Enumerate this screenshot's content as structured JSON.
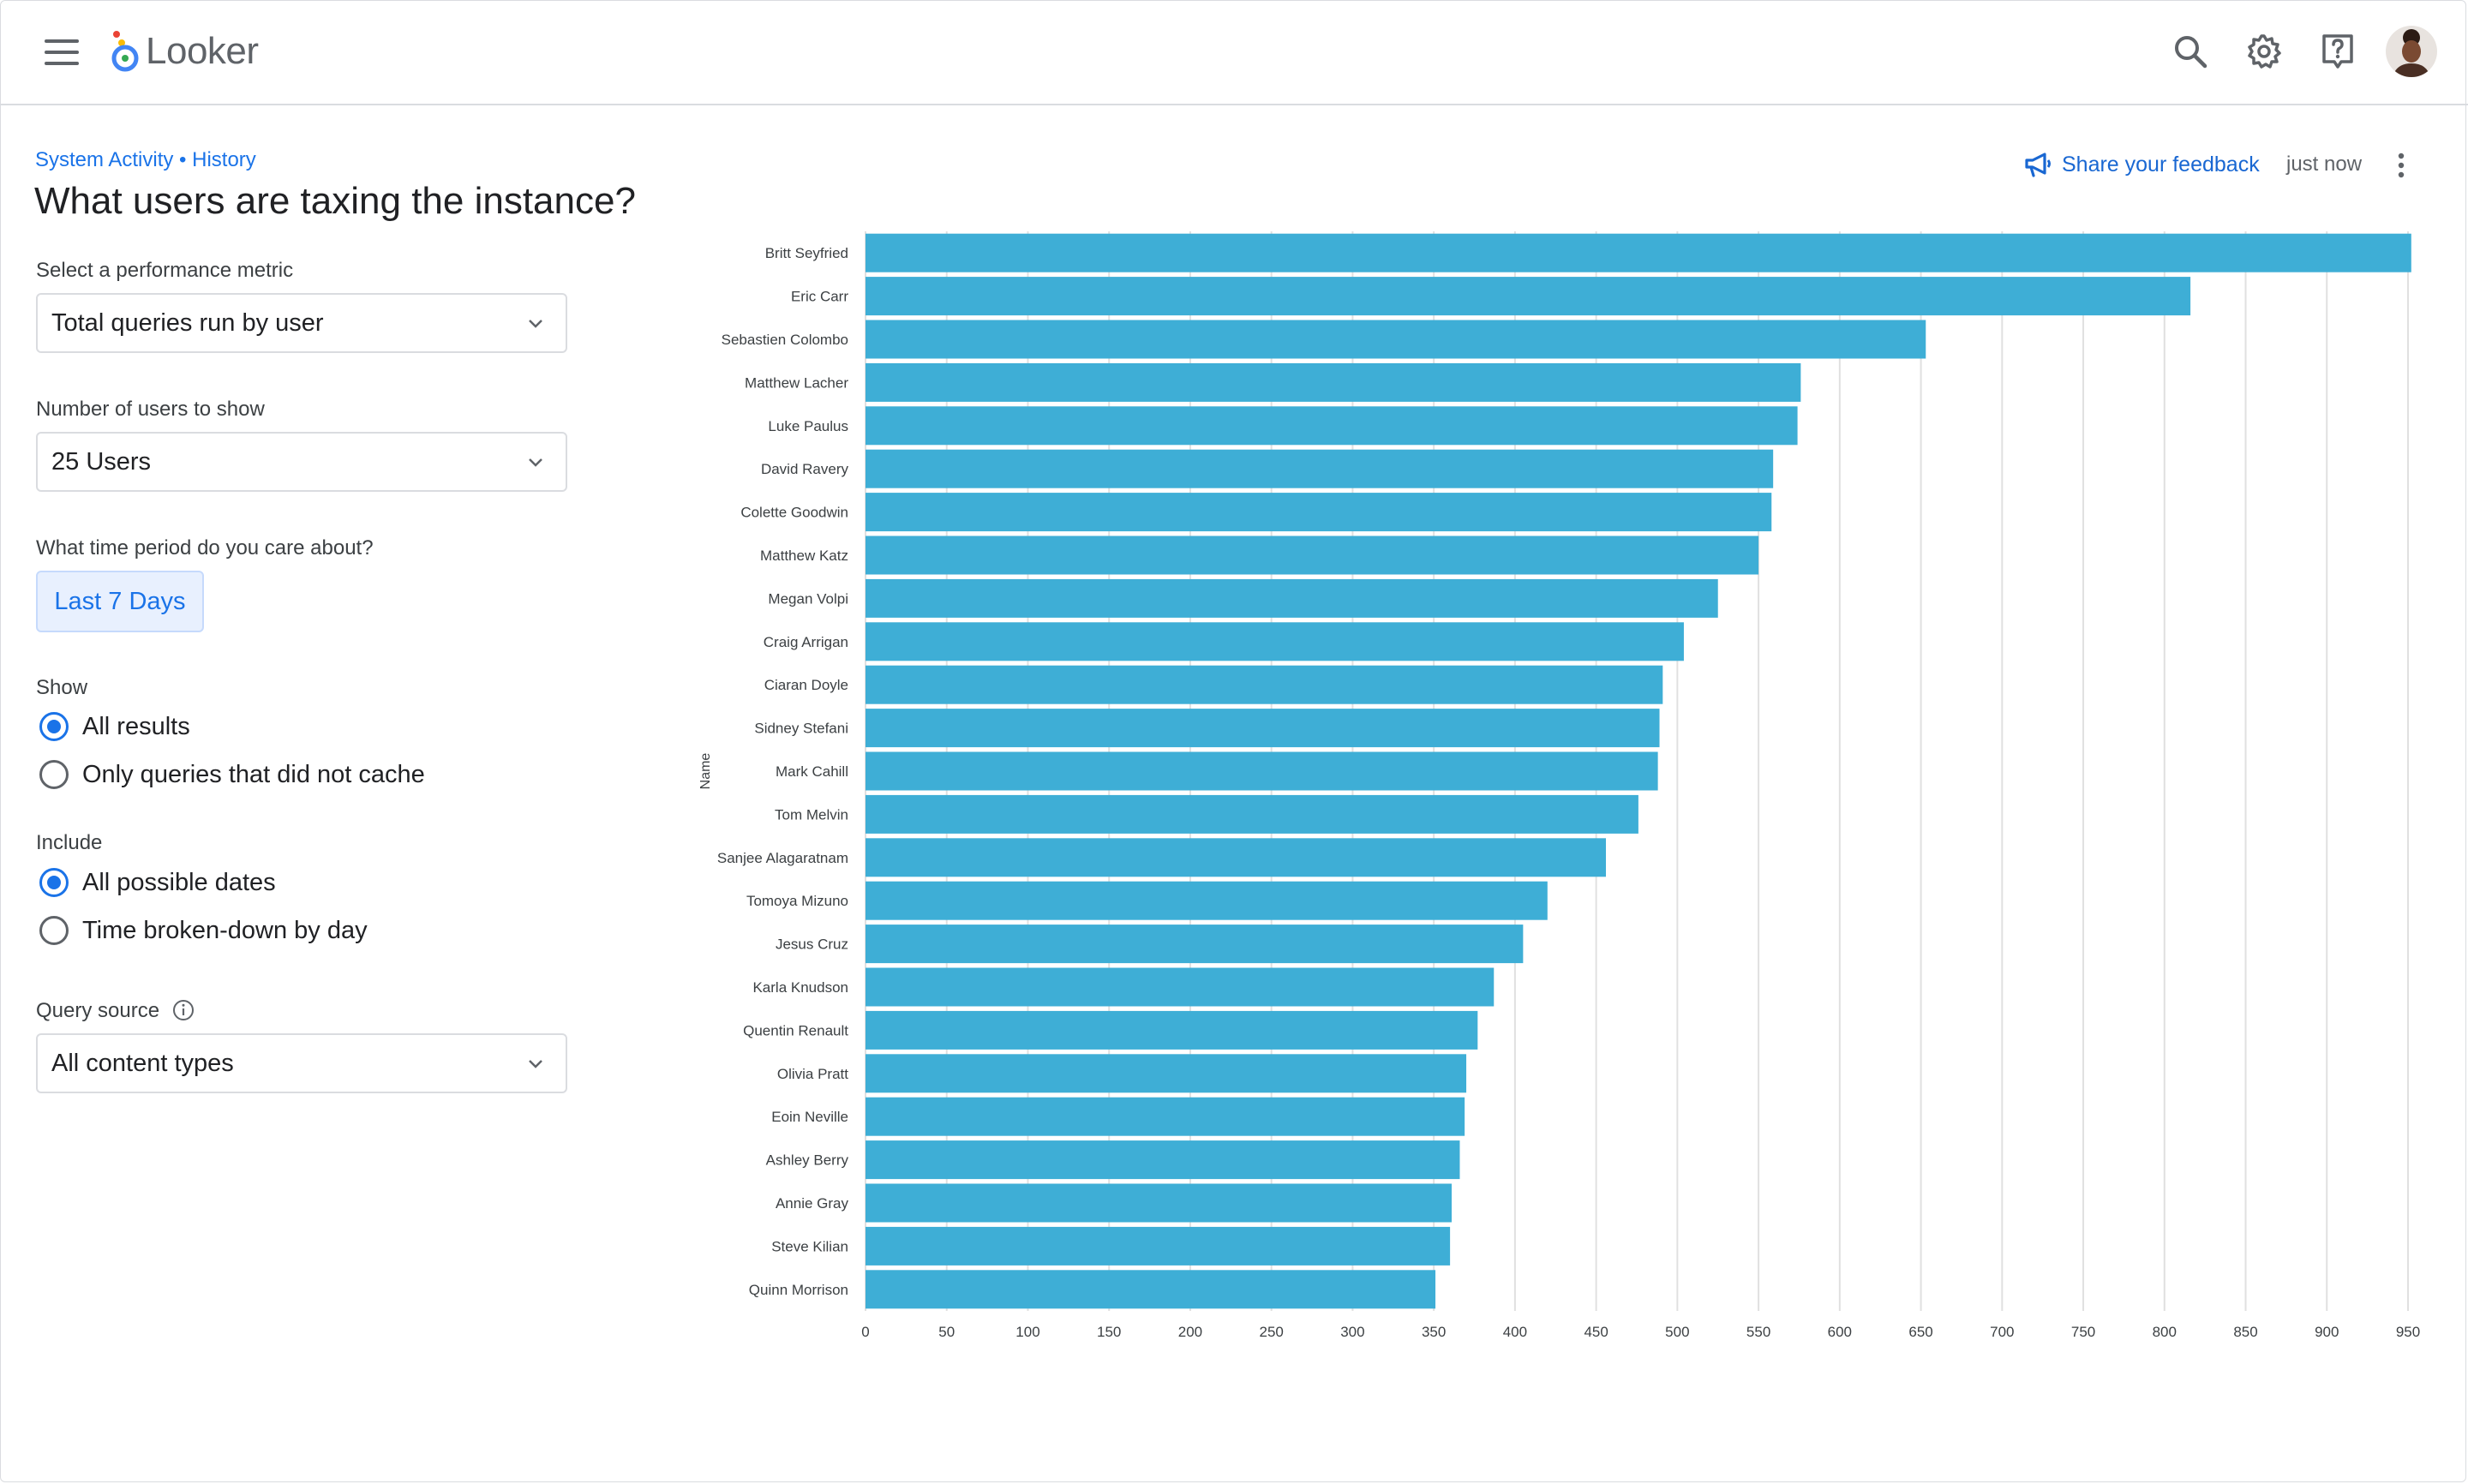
{
  "app": {
    "brand": "Looker",
    "header_icons": [
      "menu-icon",
      "search-icon",
      "gear-icon",
      "help-icon",
      "avatar"
    ]
  },
  "breadcrumb": "System Activity • History",
  "page_title": "What users are taxing the instance?",
  "filters": {
    "metric_label": "Select a performance metric",
    "metric_value": "Total queries run by user",
    "users_label": "Number of users to show",
    "users_value": "25 Users",
    "period_label": "What time period do you care about?",
    "period_value": "Last 7 Days",
    "show_label": "Show",
    "show_options": [
      "All results",
      "Only queries that did not cache"
    ],
    "show_selected": "All results",
    "include_label": "Include",
    "include_options": [
      "All possible dates",
      "Time broken-down by day"
    ],
    "include_selected": "All possible dates",
    "source_label": "Query source",
    "source_value": "All content types"
  },
  "toolbar": {
    "feedback_label": "Share your feedback",
    "updated": "just now"
  },
  "colors": {
    "bar": "#3eaed6",
    "link": "#1a73e8",
    "grid": "#e0e0e0"
  },
  "chart_data": {
    "type": "bar",
    "orientation": "horizontal",
    "ylabel": "Name",
    "xlabel": "",
    "xlim": [
      0,
      950
    ],
    "xticks": [
      0,
      50,
      100,
      150,
      200,
      250,
      300,
      350,
      400,
      450,
      500,
      550,
      600,
      650,
      700,
      750,
      800,
      850,
      900,
      950
    ],
    "grid": true,
    "categories": [
      "Britt Seyfried",
      "Eric Carr",
      "Sebastien Colombo",
      "Matthew Lacher",
      "Luke Paulus",
      "David Ravery",
      "Colette Goodwin",
      "Matthew Katz",
      "Megan Volpi",
      "Craig Arrigan",
      "Ciaran Doyle",
      "Sidney Stefani",
      "Mark Cahill",
      "Tom Melvin",
      "Sanjee Alagaratnam",
      "Tomoya Mizuno",
      "Jesus Cruz",
      "Karla Knudson",
      "Quentin Renault",
      "Olivia Pratt",
      "Eoin Neville",
      "Ashley Berry",
      "Annie Gray",
      "Steve Kilian",
      "Quinn Morrison"
    ],
    "values": [
      952,
      816,
      653,
      576,
      574,
      559,
      558,
      550,
      525,
      504,
      491,
      489,
      488,
      476,
      456,
      420,
      405,
      387,
      377,
      370,
      369,
      366,
      361,
      360,
      351
    ]
  }
}
